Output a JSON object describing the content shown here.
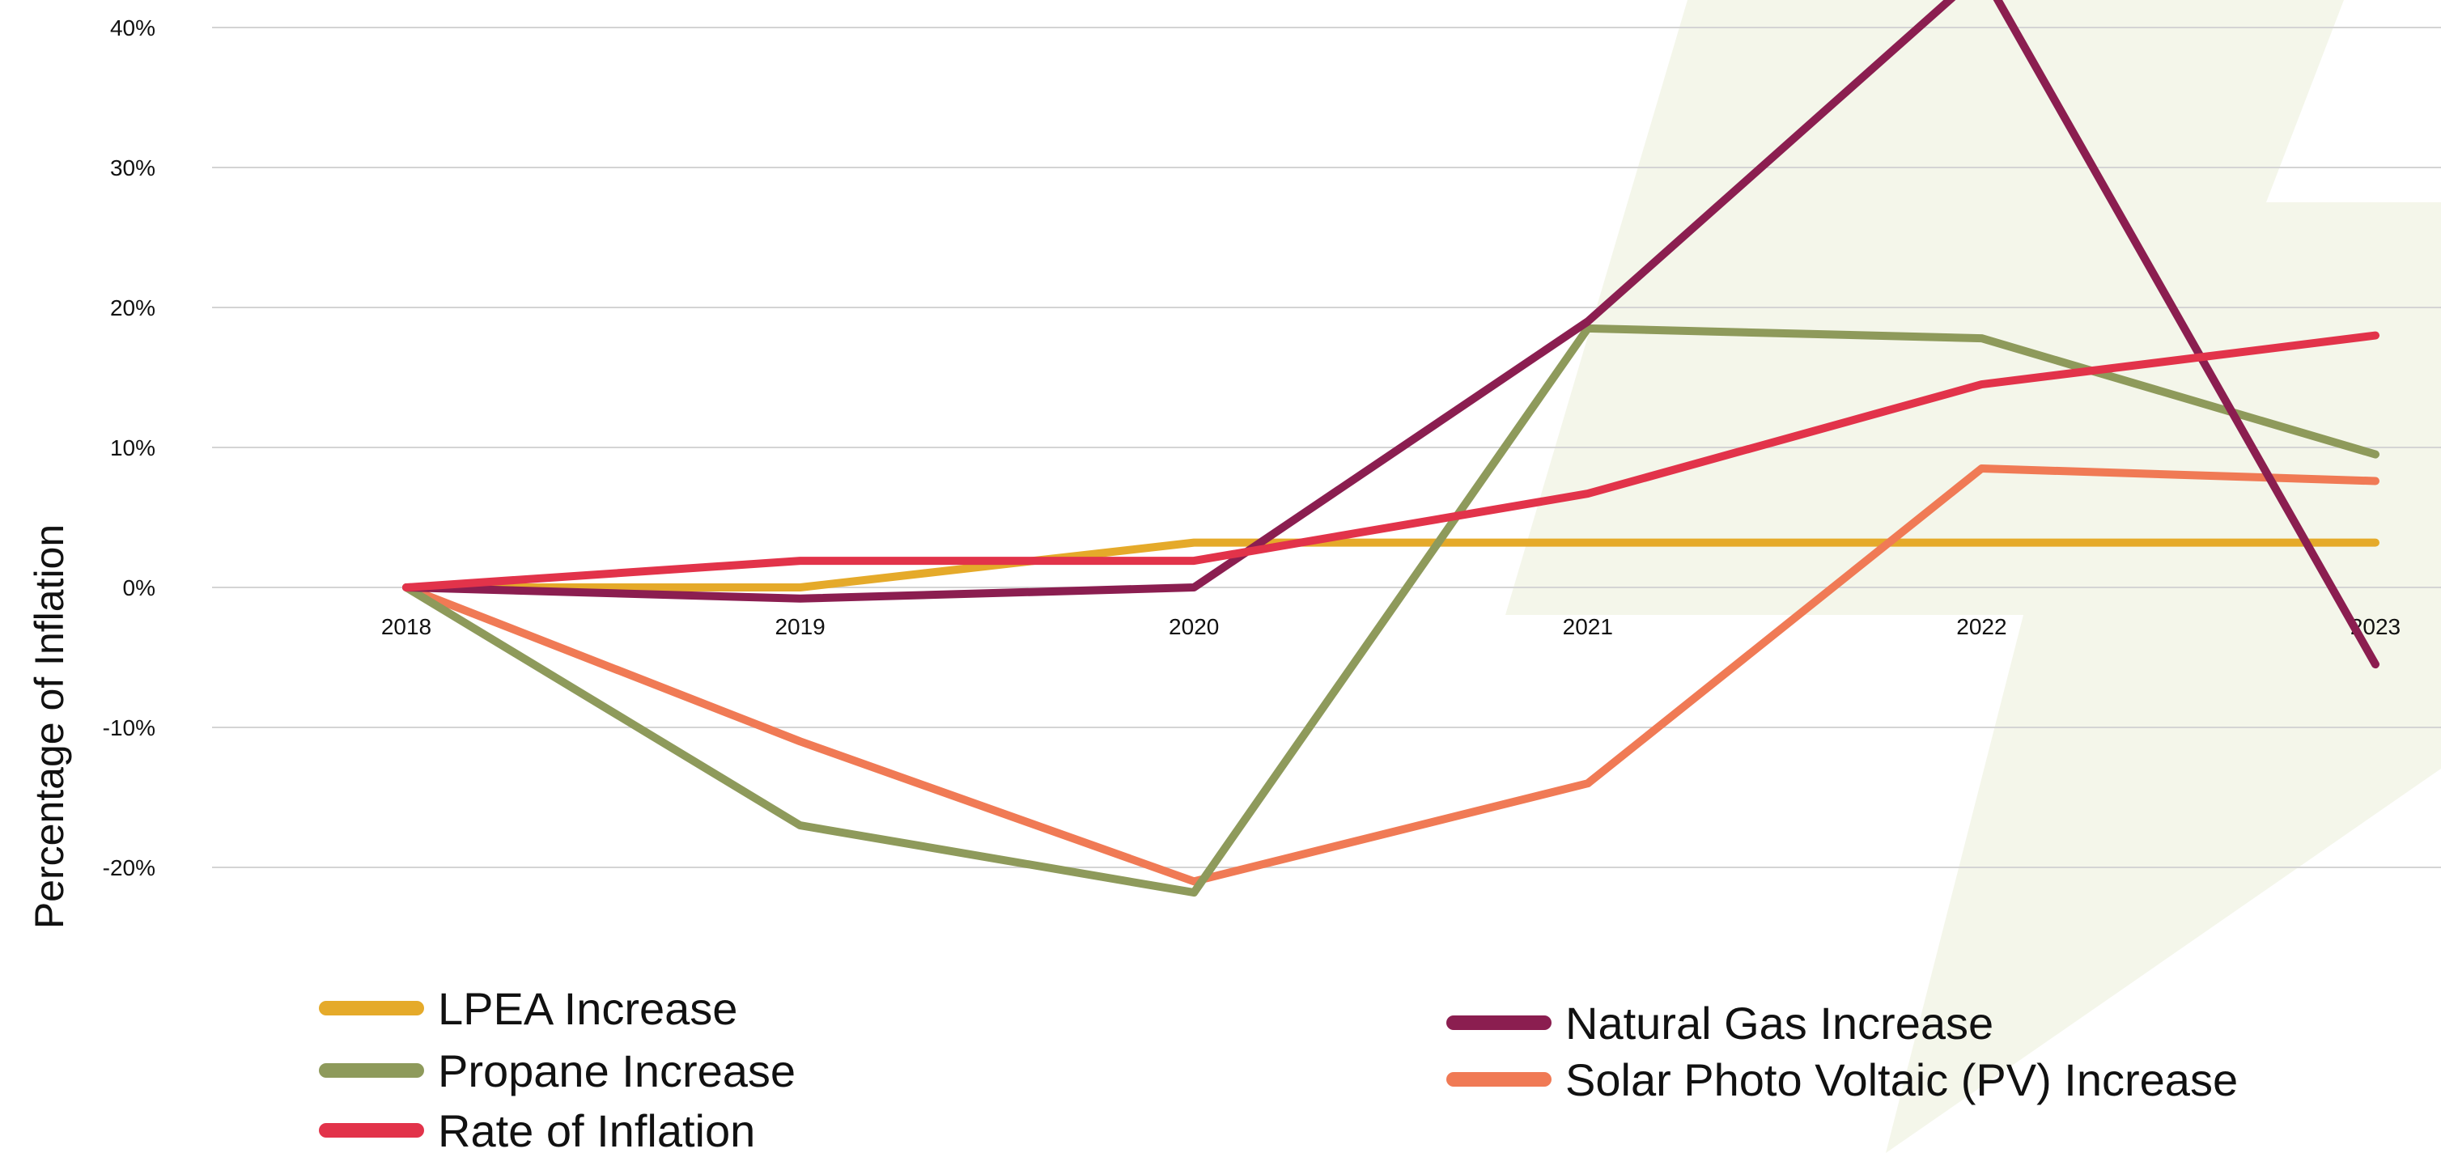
{
  "chart_data": {
    "type": "line",
    "title": "",
    "xlabel": "",
    "ylabel": "Percentage of Inflation",
    "categories": [
      "2018",
      "2019",
      "2020",
      "2021",
      "2022",
      "2023"
    ],
    "y_ticks": [
      "40%",
      "30%",
      "20%",
      "10%",
      "0%",
      "-10%",
      "-20%"
    ],
    "y_tick_values": [
      40,
      30,
      20,
      10,
      0,
      -10,
      -20
    ],
    "ylim": [
      -25,
      42
    ],
    "grid": true,
    "legend_position": "bottom",
    "series": [
      {
        "name": "LPEA Increase",
        "color": "#E5AA2A",
        "values": [
          0,
          0,
          3.2,
          3.2,
          3.2,
          3.2
        ]
      },
      {
        "name": "Propane Increase",
        "color": "#8E9A5B",
        "values": [
          0,
          -17,
          -21.8,
          18.5,
          17.8,
          9.5
        ]
      },
      {
        "name": "Rate of Inflation",
        "color": "#E2334A",
        "values": [
          0,
          1.9,
          1.9,
          6.7,
          14.5,
          18
        ]
      },
      {
        "name": "Natural Gas Increase",
        "color": "#8B1E50",
        "values": [
          0,
          -0.8,
          0,
          19,
          44,
          -5.5
        ]
      },
      {
        "name": "Solar Photo Voltaic (PV) Increase",
        "color": "#F07A55",
        "values": [
          0,
          -11,
          -21,
          -14,
          8.5,
          7.6
        ]
      }
    ],
    "background_decoration": {
      "color": "#F4F6EA",
      "icon": "lightning-bolt-icon"
    }
  }
}
